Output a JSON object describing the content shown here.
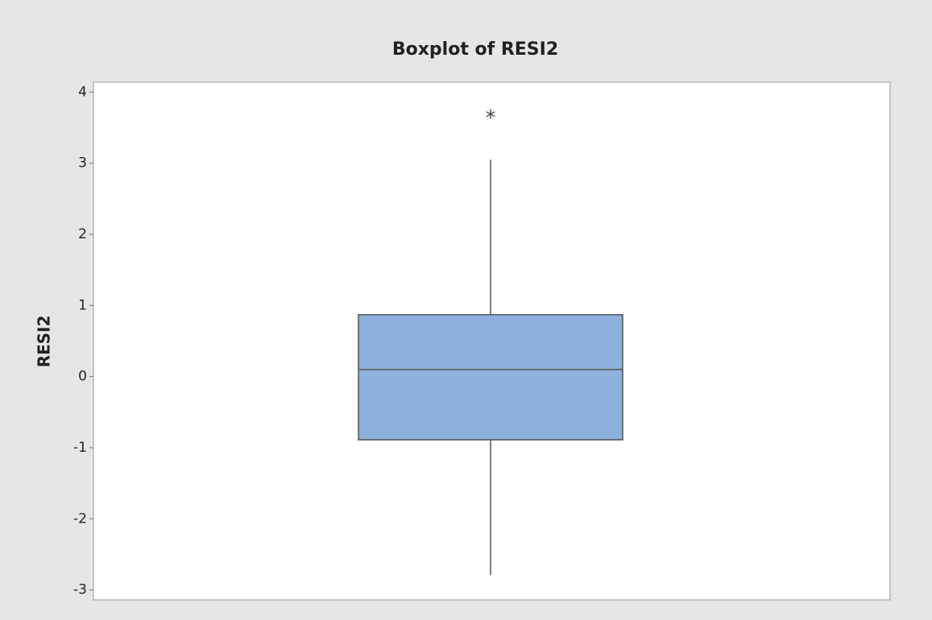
{
  "chart_data": {
    "type": "box",
    "title": "Boxplot of RESI2",
    "ylabel": "RESI2",
    "q1": -0.89,
    "median": 0.1,
    "q3": 0.87,
    "whisker_low": -2.79,
    "whisker_high": 3.05,
    "outliers": [
      3.69
    ],
    "color": "#8eb0dc",
    "ylim": [
      -3.14,
      4.14
    ],
    "yticks": [
      -3,
      -2,
      -1,
      0,
      1,
      2,
      3,
      4
    ]
  }
}
